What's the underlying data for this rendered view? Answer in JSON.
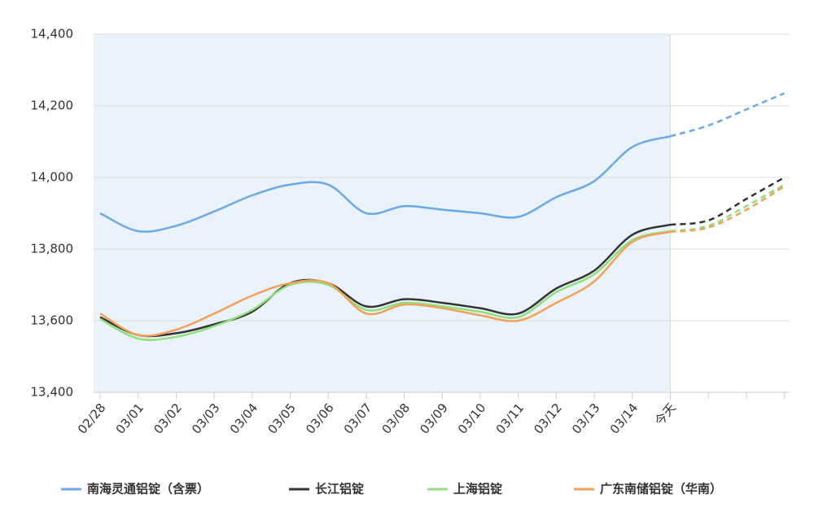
{
  "chart_data": {
    "type": "line",
    "categories": [
      "02/28",
      "03/01",
      "03/02",
      "03/03",
      "03/04",
      "03/05",
      "03/06",
      "03/07",
      "03/08",
      "03/09",
      "03/10",
      "03/11",
      "03/12",
      "03/13",
      "03/14",
      "今天",
      null,
      null,
      null
    ],
    "series": [
      {
        "name": "南海灵通铝锭（含票）",
        "color": "#6aa8e8",
        "values": [
          13900,
          13850,
          13865,
          13905,
          13950,
          13980,
          13980,
          13900,
          13920,
          13910,
          13900,
          13890,
          13945,
          13990,
          14085,
          14115,
          14145,
          14190,
          14235
        ]
      },
      {
        "name": "长江铝锭",
        "color": "#333333",
        "values": [
          13610,
          13560,
          13565,
          13590,
          13625,
          13705,
          13705,
          13640,
          13660,
          13650,
          13635,
          13620,
          13690,
          13740,
          13840,
          13868,
          13880,
          13940,
          14000
        ]
      },
      {
        "name": "上海铝锭",
        "color": "#8fe07a",
        "values": [
          13605,
          13550,
          13555,
          13585,
          13630,
          13700,
          13700,
          13630,
          13650,
          13640,
          13625,
          13610,
          13680,
          13730,
          13825,
          13850,
          13865,
          13920,
          13980
        ]
      },
      {
        "name": "广东南储铝锭（华南）",
        "color": "#f5a05a",
        "values": [
          13620,
          13560,
          13575,
          13620,
          13670,
          13705,
          13705,
          13620,
          13645,
          13635,
          13615,
          13600,
          13650,
          13710,
          13820,
          13848,
          13860,
          13910,
          13975
        ]
      }
    ],
    "ylim": [
      13400,
      14400
    ],
    "yticks": [
      {
        "value": 13400,
        "label": "13,400"
      },
      {
        "value": 13600,
        "label": "13,600"
      },
      {
        "value": 13800,
        "label": "13,800"
      },
      {
        "value": 14000,
        "label": "14,000"
      },
      {
        "value": 14200,
        "label": "14,200"
      },
      {
        "value": 14400,
        "label": "14,400"
      }
    ],
    "grid": true,
    "forecast_from_index": 15,
    "legend": "bottom"
  }
}
